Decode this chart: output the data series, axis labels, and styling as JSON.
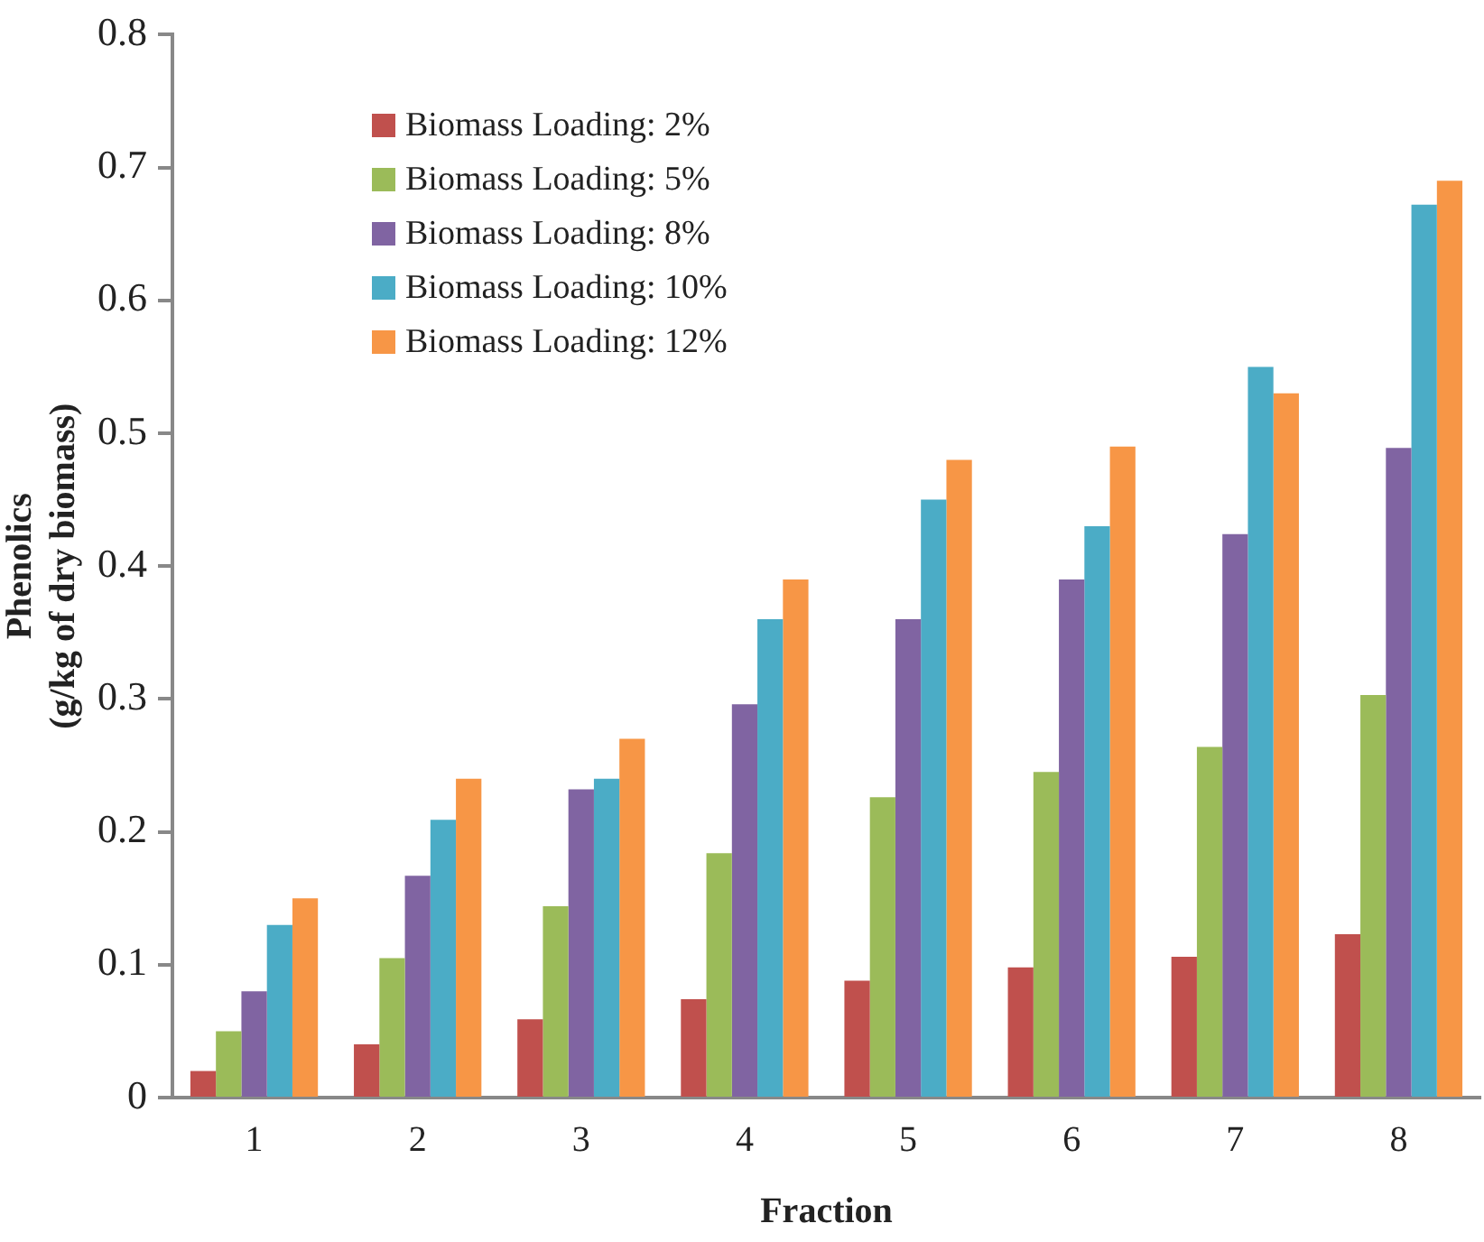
{
  "chart_data": {
    "type": "bar",
    "xlabel": "Fraction",
    "ylabel": "Phenolics\n(g/kg of dry biomass)",
    "categories": [
      "1",
      "2",
      "3",
      "4",
      "5",
      "6",
      "7",
      "8"
    ],
    "series": [
      {
        "name": "Biomass Loading: 2%",
        "color": "#c0504d",
        "values": [
          0.02,
          0.04,
          0.059,
          0.074,
          0.088,
          0.098,
          0.106,
          0.123
        ]
      },
      {
        "name": "Biomass Loading: 5%",
        "color": "#9bbb59",
        "values": [
          0.05,
          0.105,
          0.144,
          0.184,
          0.226,
          0.245,
          0.264,
          0.303
        ]
      },
      {
        "name": "Biomass Loading: 8%",
        "color": "#8064a2",
        "values": [
          0.08,
          0.167,
          0.232,
          0.296,
          0.36,
          0.39,
          0.424,
          0.489
        ]
      },
      {
        "name": "Biomass Loading: 10%",
        "color": "#4bacc6",
        "values": [
          0.13,
          0.209,
          0.24,
          0.36,
          0.45,
          0.43,
          0.55,
          0.672
        ]
      },
      {
        "name": "Biomass Loading: 12%",
        "color": "#f79646",
        "values": [
          0.15,
          0.24,
          0.27,
          0.39,
          0.48,
          0.49,
          0.53,
          0.69
        ]
      }
    ],
    "ylim": [
      0,
      0.8
    ],
    "yticks": [
      0,
      0.1,
      0.2,
      0.3,
      0.4,
      0.5,
      0.6,
      0.7,
      0.8
    ],
    "grid": false,
    "legend": "top left"
  }
}
